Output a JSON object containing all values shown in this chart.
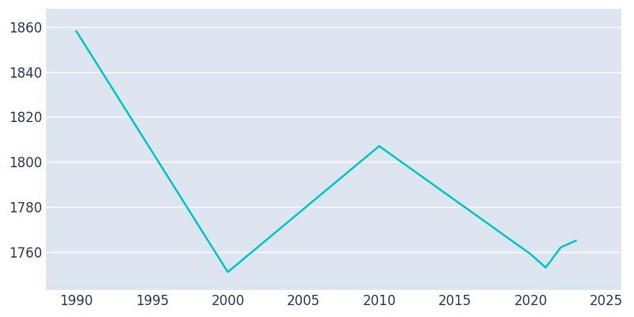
{
  "years": [
    1990,
    2000,
    2010,
    2020,
    2021,
    2022,
    2023
  ],
  "population": [
    1858,
    1751,
    1807,
    1759,
    1753,
    1762,
    1765
  ],
  "line_color": "#00C5C8",
  "plot_bg_color": "#DDE6F0",
  "fig_bg_color": "#FFFFFF",
  "grid_color": "#FFFFFF",
  "text_color": "#2D3A5C",
  "xlim": [
    1988,
    2026
  ],
  "ylim": [
    1743,
    1868
  ],
  "xticks": [
    1990,
    1995,
    2000,
    2005,
    2010,
    2015,
    2020,
    2025
  ],
  "yticks": [
    1760,
    1780,
    1800,
    1820,
    1840,
    1860
  ],
  "linewidth": 1.8,
  "tick_fontsize": 12
}
